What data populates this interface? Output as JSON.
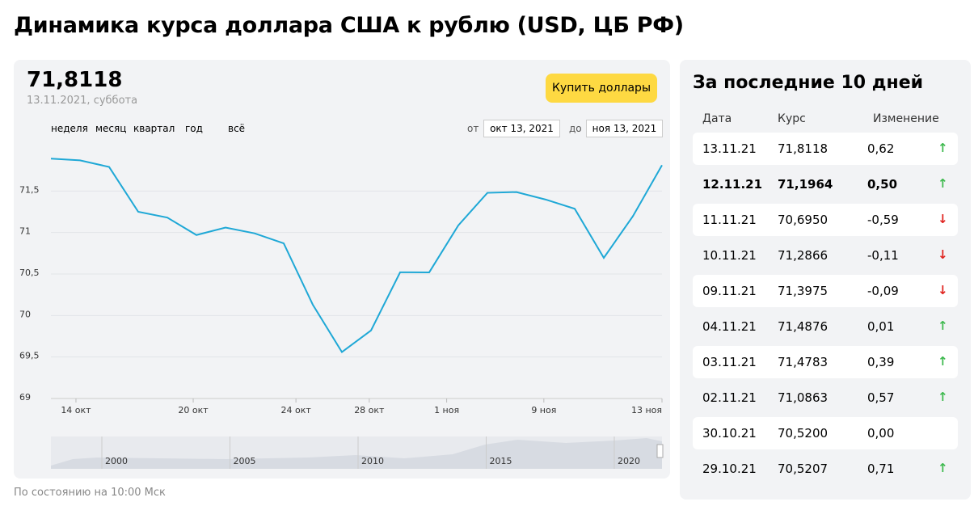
{
  "header": {
    "title": "Динамика курса доллара США к рублю (USD, ЦБ РФ)"
  },
  "summary": {
    "value": "71,8118",
    "date": "13.11.2021, суббота",
    "button": "Купить доллары"
  },
  "periods": [
    "неделя",
    "месяц",
    "квартал",
    "год",
    "всё"
  ],
  "range": {
    "from_label": "от",
    "from": "окт 13, 2021",
    "to_label": "до",
    "to": "ноя 13, 2021"
  },
  "chart_data": {
    "type": "line",
    "categories": [
      null,
      null,
      null,
      null,
      null,
      null,
      null,
      null,
      null,
      null,
      null,
      null,
      null,
      null,
      null,
      null,
      null,
      null,
      null,
      null,
      null,
      null
    ],
    "series": [
      {
        "name": null,
        "color": "#1fa8d6",
        "values": [
          71.89,
          71.87,
          71.79,
          71.25,
          71.18,
          70.97,
          71.06,
          70.99,
          70.87,
          70.13,
          69.56,
          69.82,
          70.5207,
          70.52,
          71.0863,
          71.4783,
          71.4876,
          71.3975,
          71.2866,
          70.695,
          71.1964,
          71.8118
        ]
      }
    ],
    "xlim": [
      0,
      21
    ],
    "xticks": [
      {
        "value": 0.86,
        "label": "14 окт"
      },
      {
        "value": 4.89,
        "label": "20 окт"
      },
      {
        "value": 8.42,
        "label": "24 окт"
      },
      {
        "value": 10.94,
        "label": "28 окт"
      },
      {
        "value": 13.6,
        "label": "1 ноя"
      },
      {
        "value": 16.94,
        "label": "9 ноя"
      },
      {
        "value": 21,
        "label": "13 ноя"
      }
    ],
    "ylim": [
      69,
      72
    ],
    "yticks": [
      69,
      {
        "value": 69.5,
        "label": "69,5"
      },
      70,
      {
        "value": 70.5,
        "label": "70,5"
      },
      71,
      {
        "value": 71.5,
        "label": "71,5"
      }
    ],
    "grid": true
  },
  "navigator": {
    "years": [
      2000,
      2005,
      2010,
      2015,
      2020
    ]
  },
  "table": {
    "title": "За последние 10 дней",
    "headers": [
      "Дата",
      "Курс",
      "Изменение"
    ],
    "rows": [
      [
        "13.11.21",
        "71,8118",
        "0,62"
      ],
      [
        "12.11.21",
        "71,1964",
        "0,50"
      ],
      [
        "11.11.21",
        "70,6950",
        "-0,59"
      ],
      [
        "10.11.21",
        "71,2866",
        "-0,11"
      ],
      [
        "09.11.21",
        "71,3975",
        "-0,09"
      ],
      [
        "04.11.21",
        "71,4876",
        "0,01"
      ],
      [
        "03.11.21",
        "71,4783",
        "0,39"
      ],
      [
        "02.11.21",
        "71,0863",
        "0,57"
      ],
      [
        "30.10.21",
        "70,5200",
        "0,00"
      ],
      [
        "29.10.21",
        "70,5207",
        "0,71"
      ]
    ],
    "trends": [
      "up",
      "up",
      "down",
      "down",
      "down",
      "up",
      "up",
      "up",
      null,
      "up"
    ],
    "selected_row": 1
  },
  "footer": {
    "note": "По состоянию на 10:00 Мск"
  }
}
